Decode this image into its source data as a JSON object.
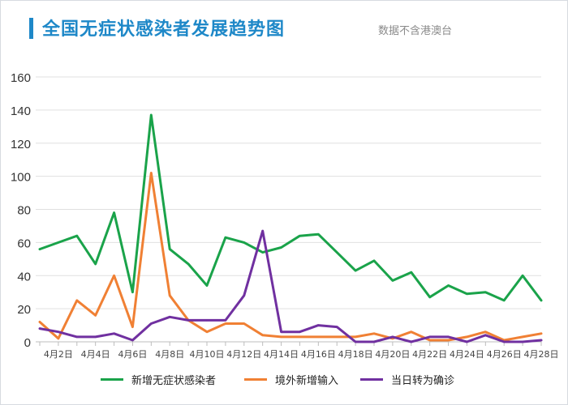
{
  "header": {
    "title": "全国无症状感染者发展趋势图",
    "note": "数据不含港澳台"
  },
  "chart_data": {
    "type": "line",
    "x": [
      "4月1日",
      "4月2日",
      "4月3日",
      "4月4日",
      "4月5日",
      "4月6日",
      "4月7日",
      "4月8日",
      "4月9日",
      "4月10日",
      "4月11日",
      "4月12日",
      "4月13日",
      "4月14日",
      "4月15日",
      "4月16日",
      "4月17日",
      "4月18日",
      "4月19日",
      "4月20日",
      "4月21日",
      "4月22日",
      "4月23日",
      "4月24日",
      "4月25日",
      "4月26日",
      "4月27日",
      "4月28日"
    ],
    "x_tick_labels": [
      "4月2日",
      "4月4日",
      "4月6日",
      "4月8日",
      "4月10日",
      "4月12日",
      "4月14日",
      "4月16日",
      "4月18日",
      "4月20日",
      "4月22日",
      "4月24日",
      "4月26日",
      "4月28日"
    ],
    "ylim": [
      0,
      160
    ],
    "yticks": [
      0,
      20,
      40,
      60,
      80,
      100,
      120,
      140,
      160
    ],
    "grid": true,
    "legend_position": "bottom",
    "series": [
      {
        "name": "新增无症状感染者",
        "color": "#1aa34a",
        "values": [
          56,
          60,
          64,
          47,
          78,
          30,
          137,
          56,
          47,
          34,
          63,
          60,
          54,
          57,
          64,
          65,
          54,
          43,
          49,
          37,
          42,
          27,
          34,
          29,
          30,
          25,
          40,
          25
        ]
      },
      {
        "name": "境外新增输入",
        "color": "#f08034",
        "values": [
          12,
          2,
          25,
          16,
          40,
          9,
          102,
          28,
          13,
          6,
          11,
          11,
          4,
          3,
          3,
          3,
          3,
          3,
          5,
          2,
          6,
          1,
          1,
          3,
          6,
          1,
          3,
          5
        ]
      },
      {
        "name": "当日转为确诊",
        "color": "#7030a0",
        "values": [
          8,
          6,
          3,
          3,
          5,
          1,
          11,
          15,
          13,
          13,
          13,
          28,
          67,
          6,
          6,
          10,
          9,
          0,
          0,
          3,
          0,
          3,
          3,
          0,
          4,
          0,
          0,
          1
        ]
      }
    ]
  }
}
